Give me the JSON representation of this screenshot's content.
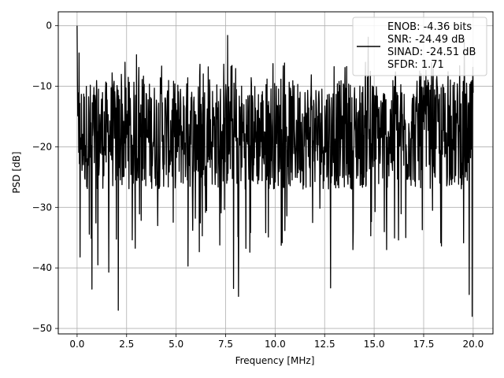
{
  "chart_data": {
    "type": "line",
    "xlabel": "Frequency [MHz]",
    "ylabel": "PSD [dB]",
    "xlim": [
      -0.95,
      21.0
    ],
    "ylim": [
      -50.9,
      2.3
    ],
    "xticks": [
      0.0,
      2.5,
      5.0,
      7.5,
      10.0,
      12.5,
      15.0,
      17.5,
      20.0
    ],
    "xtick_labels": [
      "0.0",
      "2.5",
      "5.0",
      "7.5",
      "10.0",
      "12.5",
      "15.0",
      "17.5",
      "20.0"
    ],
    "yticks": [
      0,
      -10,
      -20,
      -30,
      -40,
      -50
    ],
    "ytick_labels": [
      "0",
      "−10",
      "−20",
      "−30",
      "−40",
      "−50"
    ],
    "grid": true,
    "legend_position": "top-right",
    "legend_lines": [
      "ENOB: -4.36 bits",
      "SNR: -24.49 dB",
      "SINAD: -24.51 dB",
      "SFDR: 1.71"
    ],
    "series": [
      {
        "color": "#000000",
        "x_start": 0.0,
        "x_end": 20.0,
        "num_points": 1200,
        "typical_range": [
          -27,
          -9
        ],
        "notable_points": [
          {
            "x": 0.0,
            "y": 0.0
          },
          {
            "x": 0.1,
            "y": -4.5
          },
          {
            "x": 0.15,
            "y": -38.2
          },
          {
            "x": 0.75,
            "y": -43.5
          },
          {
            "x": 1.05,
            "y": -39.5
          },
          {
            "x": 1.6,
            "y": -40.7
          },
          {
            "x": 2.08,
            "y": -47.0
          },
          {
            "x": 3.0,
            "y": -4.8
          },
          {
            "x": 5.6,
            "y": -39.7
          },
          {
            "x": 7.6,
            "y": -1.6
          },
          {
            "x": 7.9,
            "y": -43.4
          },
          {
            "x": 8.15,
            "y": -44.7
          },
          {
            "x": 12.8,
            "y": -43.3
          },
          {
            "x": 14.7,
            "y": -1.9
          },
          {
            "x": 19.55,
            "y": -2.1
          },
          {
            "x": 19.8,
            "y": -44.4
          },
          {
            "x": 19.95,
            "y": -48.0
          }
        ]
      }
    ]
  }
}
